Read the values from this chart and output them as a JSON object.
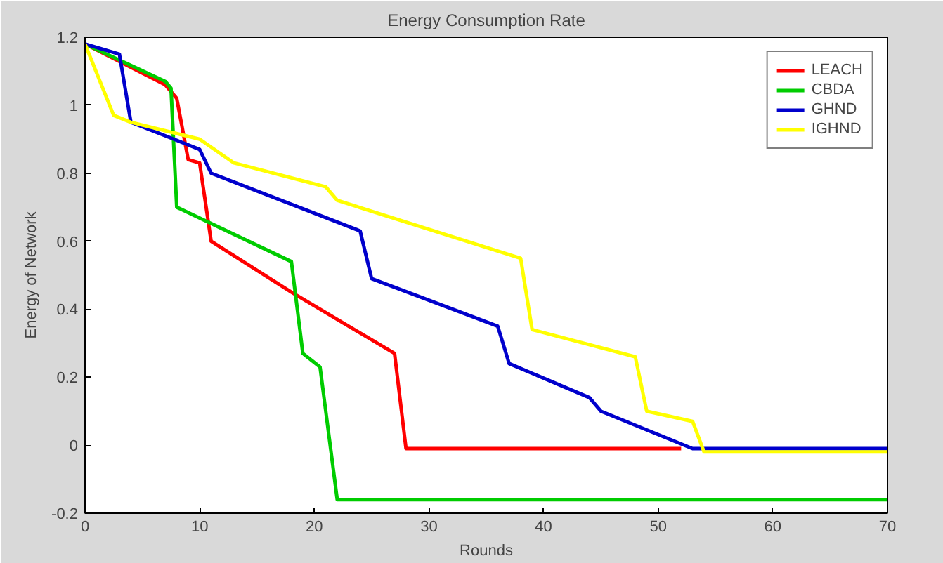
{
  "chart_data": {
    "type": "line",
    "title": "Energy Consumption Rate",
    "xlabel": "Rounds",
    "ylabel": "Energy of Network",
    "xlim": [
      0,
      70
    ],
    "ylim": [
      -0.2,
      1.2
    ],
    "xticks": [
      0,
      10,
      20,
      30,
      40,
      50,
      60,
      70
    ],
    "yticks": [
      -0.2,
      0,
      0.2,
      0.4,
      0.6,
      0.8,
      1,
      1.2
    ],
    "grid": false,
    "legend": "top right",
    "marker": "none",
    "line_style": "solid",
    "series": [
      {
        "name": "LEACH",
        "color": "#ff0000",
        "x": [
          0,
          7,
          8,
          9,
          10,
          11,
          18,
          27,
          28,
          52
        ],
        "values": [
          1.18,
          1.06,
          1.02,
          0.84,
          0.83,
          0.6,
          0.45,
          0.27,
          -0.01,
          -0.01
        ]
      },
      {
        "name": "CBDA",
        "color": "#00cc00",
        "x": [
          0,
          7,
          7.5,
          8,
          18,
          19,
          20.5,
          22,
          70
        ],
        "values": [
          1.18,
          1.07,
          1.05,
          0.7,
          0.54,
          0.27,
          0.23,
          -0.16,
          -0.16
        ]
      },
      {
        "name": "GHND",
        "color": "#0000cc",
        "x": [
          0,
          3,
          4,
          10,
          11,
          24,
          25,
          36,
          37,
          44,
          45,
          53,
          70
        ],
        "values": [
          1.18,
          1.15,
          0.95,
          0.87,
          0.8,
          0.63,
          0.49,
          0.35,
          0.24,
          0.14,
          0.1,
          -0.01,
          -0.01
        ]
      },
      {
        "name": "IGHND",
        "color": "#ffff00",
        "x": [
          0,
          2.5,
          4,
          10,
          13,
          21,
          22,
          38,
          39,
          48,
          49,
          53,
          54,
          70
        ],
        "values": [
          1.18,
          0.97,
          0.95,
          0.9,
          0.83,
          0.76,
          0.72,
          0.55,
          0.34,
          0.26,
          0.1,
          0.07,
          -0.02,
          -0.02
        ]
      }
    ]
  }
}
